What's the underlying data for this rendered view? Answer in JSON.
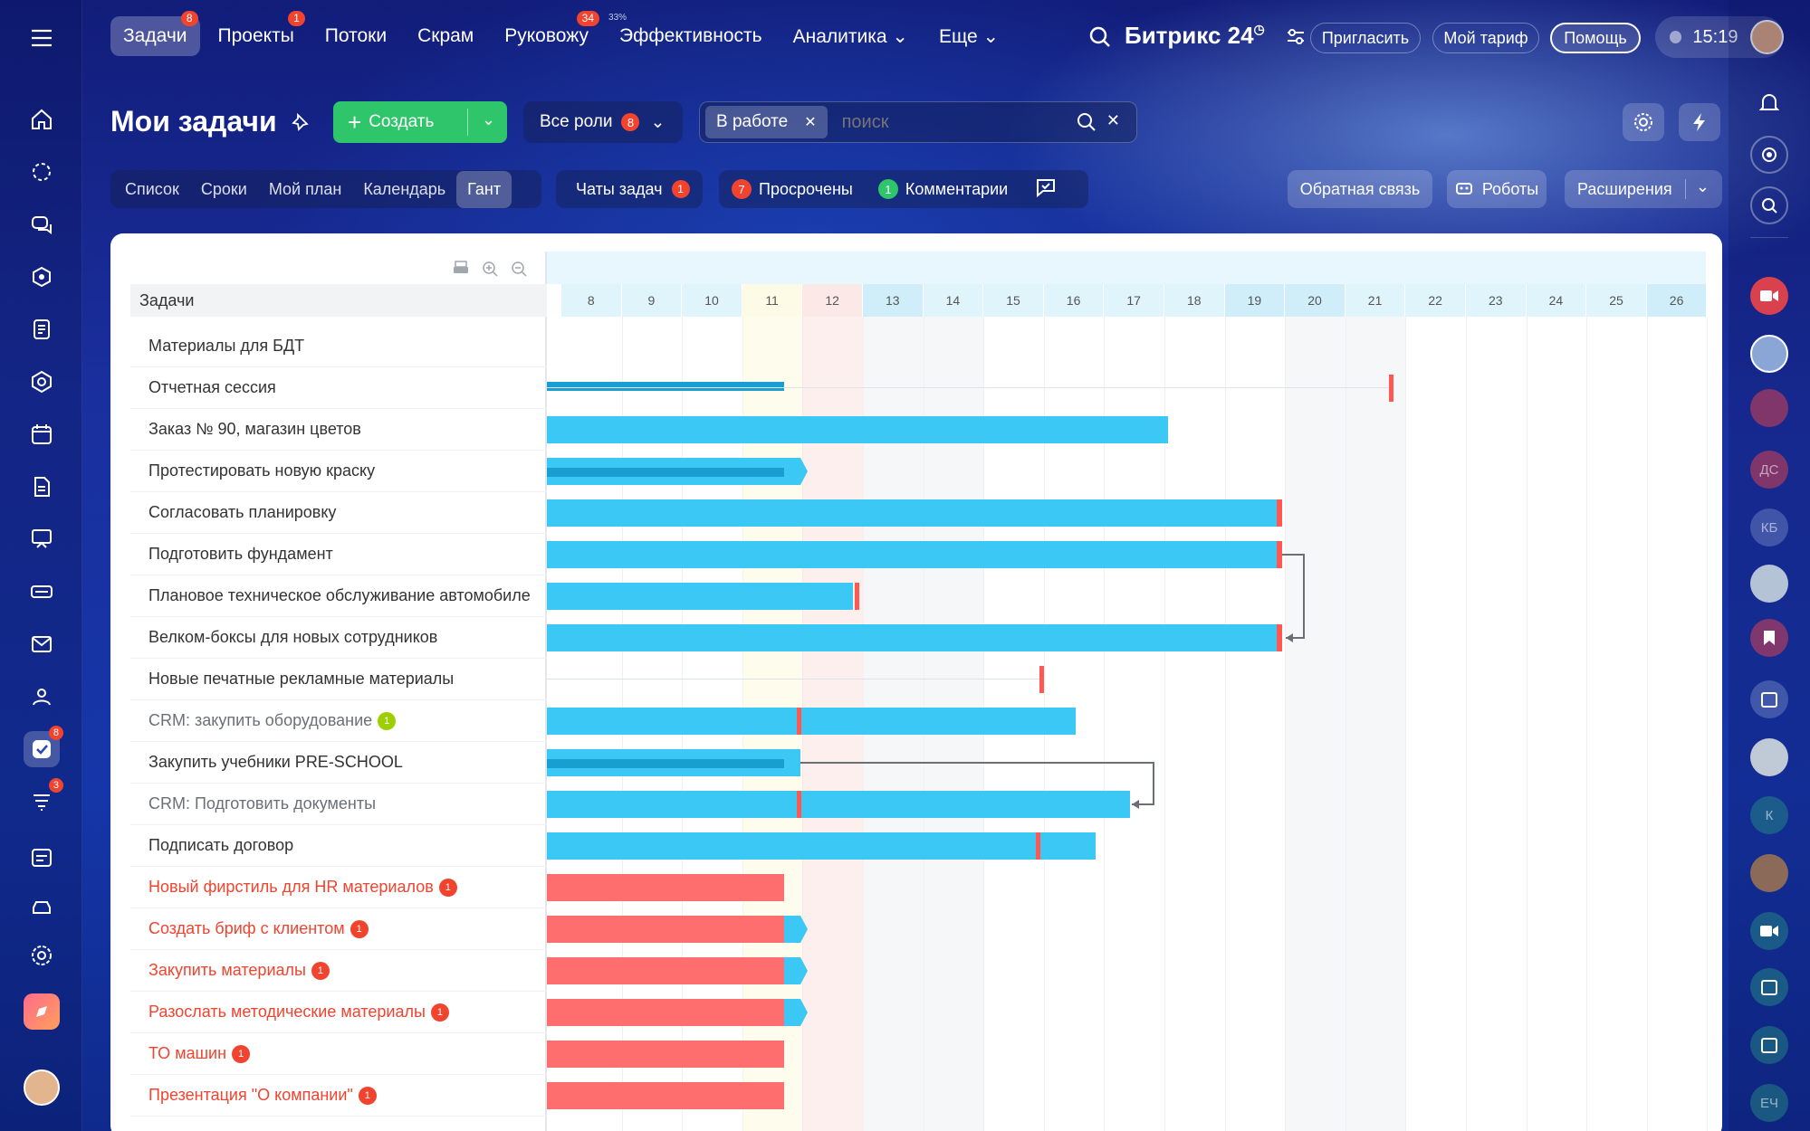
{
  "top_nav": {
    "items": [
      {
        "label": "Задачи",
        "badge": "8",
        "active": true
      },
      {
        "label": "Проекты",
        "badge": "1"
      },
      {
        "label": "Потоки"
      },
      {
        "label": "Скрам"
      },
      {
        "label": "Руковожу",
        "badge": "34"
      },
      {
        "label": "Эффективность",
        "pct": "33%"
      },
      {
        "label": "Аналитика ⌄"
      },
      {
        "label": "Еще ⌄"
      }
    ]
  },
  "brand": {
    "name": "Битрикс 24",
    "mark": "◷"
  },
  "header_actions": {
    "invite": "Пригласить",
    "tariff": "Мой тариф",
    "help": "Помощь",
    "time": "15:19"
  },
  "page": {
    "title": "Мои задачи",
    "create": "Создать",
    "roles": "Все роли",
    "roles_badge": "8",
    "filter_chip": "В работе",
    "search_placeholder": "поиск"
  },
  "view_tabs": [
    "Список",
    "Сроки",
    "Мой план",
    "Календарь",
    "Гант"
  ],
  "chat_tasks": {
    "label": "Чаты задач",
    "badge": "1"
  },
  "counters": {
    "overdue_count": "7",
    "overdue_label": "Просрочены",
    "comments_count": "1",
    "comments_label": "Комментарии"
  },
  "right_tools": {
    "feedback": "Обратная связь",
    "robots": "Роботы",
    "extensions": "Расширения"
  },
  "gantt": {
    "column_header": "Задачи",
    "days": [
      "8",
      "9",
      "10",
      "11",
      "12",
      "13",
      "14",
      "15",
      "16",
      "17",
      "18",
      "19",
      "20",
      "21",
      "22",
      "23",
      "24",
      "25",
      "26"
    ],
    "tasks": [
      {
        "name": "Материалы для БДТ",
        "style": "normal"
      },
      {
        "name": "Отчетная сессия",
        "style": "normal"
      },
      {
        "name": "Заказ № 90, магазин цветов",
        "style": "normal"
      },
      {
        "name": "Протестировать новую краску",
        "style": "normal"
      },
      {
        "name": "Согласовать планировку",
        "style": "normal"
      },
      {
        "name": "Подготовить фундамент",
        "style": "normal"
      },
      {
        "name": "Плановое техническое обслуживание автомобиле",
        "style": "normal"
      },
      {
        "name": "Велком-боксы для новых сотрудников",
        "style": "normal"
      },
      {
        "name": "Новые печатные рекламные материалы",
        "style": "normal"
      },
      {
        "name": "CRM: закупить оборудование",
        "style": "gray",
        "badge": "1",
        "badge_color": "green"
      },
      {
        "name": "Закупить учебники PRE-SCHOOL",
        "style": "normal"
      },
      {
        "name": "CRM: Подготовить документы",
        "style": "gray"
      },
      {
        "name": "Подписать договор",
        "style": "normal"
      },
      {
        "name": "Новый фирстиль для HR материалов",
        "style": "red",
        "badge": "1"
      },
      {
        "name": "Создать бриф с клиентом",
        "style": "red",
        "badge": "1"
      },
      {
        "name": "Закупить материалы",
        "style": "red",
        "badge": "1"
      },
      {
        "name": "Разослать методические материалы",
        "style": "red",
        "badge": "1"
      },
      {
        "name": "ТО машин",
        "style": "red",
        "badge": "1"
      },
      {
        "name": "Презентация \"О компании\"",
        "style": "red",
        "badge": "1"
      }
    ]
  },
  "left_sidebar": {
    "tasks_badge": "8",
    "flows_badge": "3"
  },
  "right_sidebar": {
    "initials": [
      "ДС",
      "КБ",
      "К",
      "ЕЧ"
    ]
  }
}
